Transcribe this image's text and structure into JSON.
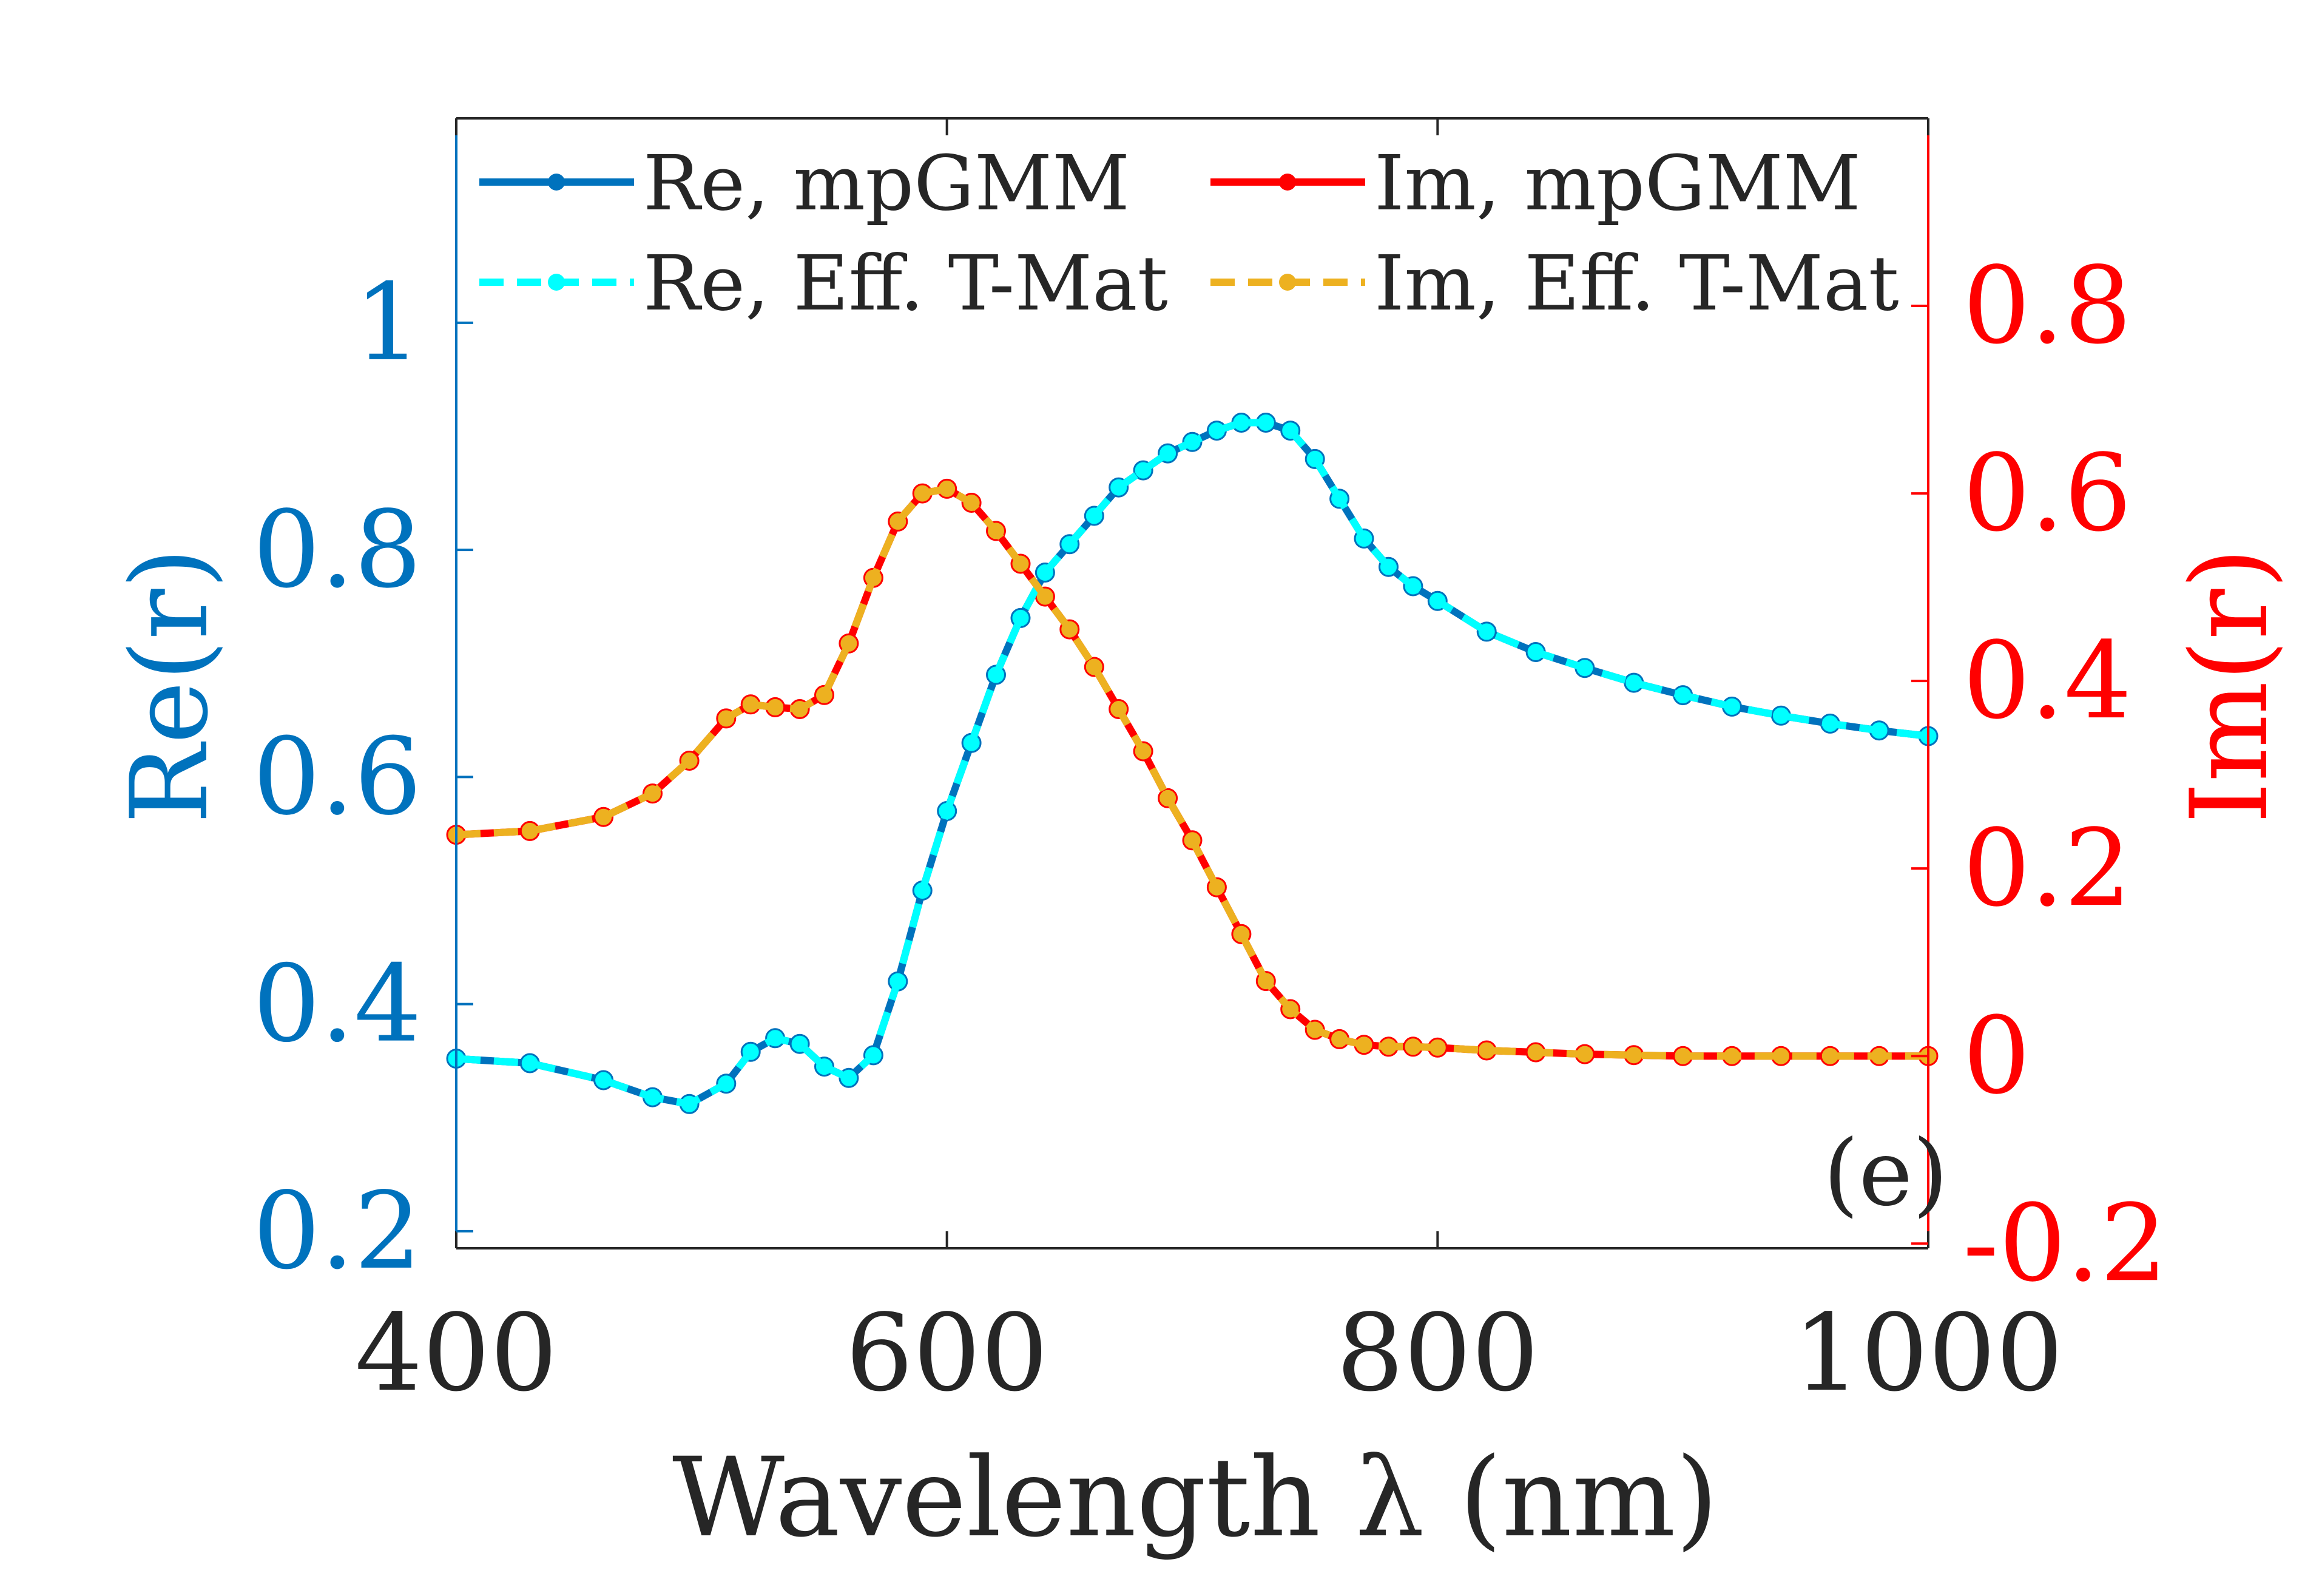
{
  "colors": {
    "re_mpgmm": "#0072bd",
    "re_efft": "#00ffff",
    "im_mpgmm": "#ff0000",
    "im_efft": "#edb120",
    "left_axis": "#0072bd",
    "right_axis": "#ff0000",
    "frame": "#262626",
    "text": "#262626"
  },
  "chart_data": {
    "type": "line",
    "panel_label": "(e)",
    "xlabel": "Wavelength λ (nm)",
    "ylabel_left": "Re(r)",
    "ylabel_right": "Im(r)",
    "xlim": [
      400,
      1000
    ],
    "ylim_left": [
      0.185,
      1.18
    ],
    "ylim_right": [
      -0.205,
      1.0
    ],
    "xticks": [
      400,
      600,
      800,
      1000
    ],
    "xtick_labels": [
      "400",
      "600",
      "800",
      "1000"
    ],
    "yticks_left": [
      0.2,
      0.4,
      0.6,
      0.8,
      1
    ],
    "ytick_labels_left": [
      "0.2",
      "0.4",
      "0.6",
      "0.8",
      "1"
    ],
    "yticks_right": [
      -0.2,
      0,
      0.2,
      0.4,
      0.6,
      0.8
    ],
    "ytick_labels_right": [
      "-0.2",
      "0",
      "0.2",
      "0.4",
      "0.6",
      "0.8"
    ],
    "legend_placement": "top",
    "legend": [
      "Re, mpGMM",
      "Im, mpGMM",
      "Re, Eff. T-Mat",
      "Im, Eff. T-Mat"
    ],
    "x": [
      400,
      430,
      460,
      480,
      495,
      510,
      520,
      530,
      540,
      550,
      560,
      570,
      580,
      590,
      600,
      610,
      620,
      630,
      640,
      650,
      660,
      670,
      680,
      690,
      700,
      710,
      720,
      730,
      740,
      750,
      760,
      770,
      780,
      790,
      800,
      820,
      840,
      860,
      880,
      900,
      920,
      940,
      960,
      980,
      1000
    ],
    "series": [
      {
        "name": "Re, mpGMM",
        "axis": "left",
        "style": "solid",
        "values": [
          0.352,
          0.348,
          0.333,
          0.318,
          0.312,
          0.33,
          0.358,
          0.37,
          0.365,
          0.345,
          0.335,
          0.355,
          0.42,
          0.5,
          0.57,
          0.63,
          0.69,
          0.74,
          0.78,
          0.805,
          0.83,
          0.855,
          0.87,
          0.885,
          0.895,
          0.905,
          0.912,
          0.912,
          0.905,
          0.88,
          0.845,
          0.81,
          0.785,
          0.768,
          0.755,
          0.728,
          0.71,
          0.696,
          0.683,
          0.672,
          0.662,
          0.654,
          0.647,
          0.641,
          0.636
        ]
      },
      {
        "name": "Re, Eff. T-Mat",
        "axis": "left",
        "style": "dashed",
        "values": [
          0.352,
          0.348,
          0.333,
          0.318,
          0.312,
          0.33,
          0.358,
          0.37,
          0.365,
          0.345,
          0.335,
          0.355,
          0.42,
          0.5,
          0.57,
          0.63,
          0.69,
          0.74,
          0.78,
          0.805,
          0.83,
          0.855,
          0.87,
          0.885,
          0.895,
          0.905,
          0.912,
          0.912,
          0.905,
          0.88,
          0.845,
          0.81,
          0.785,
          0.768,
          0.755,
          0.728,
          0.71,
          0.696,
          0.683,
          0.672,
          0.662,
          0.654,
          0.647,
          0.641,
          0.636
        ]
      },
      {
        "name": "Im, mpGMM",
        "axis": "right",
        "style": "solid",
        "values": [
          0.236,
          0.24,
          0.255,
          0.28,
          0.315,
          0.36,
          0.375,
          0.372,
          0.37,
          0.385,
          0.44,
          0.51,
          0.57,
          0.6,
          0.605,
          0.59,
          0.56,
          0.525,
          0.49,
          0.455,
          0.415,
          0.37,
          0.325,
          0.275,
          0.23,
          0.18,
          0.13,
          0.08,
          0.05,
          0.028,
          0.018,
          0.012,
          0.01,
          0.01,
          0.009,
          0.006,
          0.004,
          0.002,
          0.001,
          0.0,
          0.0,
          0.0,
          0.0,
          0.0,
          0.0
        ]
      },
      {
        "name": "Im, Eff. T-Mat",
        "axis": "right",
        "style": "dashed",
        "values": [
          0.236,
          0.24,
          0.255,
          0.28,
          0.315,
          0.36,
          0.375,
          0.372,
          0.37,
          0.385,
          0.44,
          0.51,
          0.57,
          0.6,
          0.605,
          0.59,
          0.56,
          0.525,
          0.49,
          0.455,
          0.415,
          0.37,
          0.325,
          0.275,
          0.23,
          0.18,
          0.13,
          0.08,
          0.05,
          0.028,
          0.018,
          0.012,
          0.01,
          0.01,
          0.009,
          0.006,
          0.004,
          0.002,
          0.001,
          0.0,
          0.0,
          0.0,
          0.0,
          0.0,
          0.0
        ]
      }
    ]
  }
}
